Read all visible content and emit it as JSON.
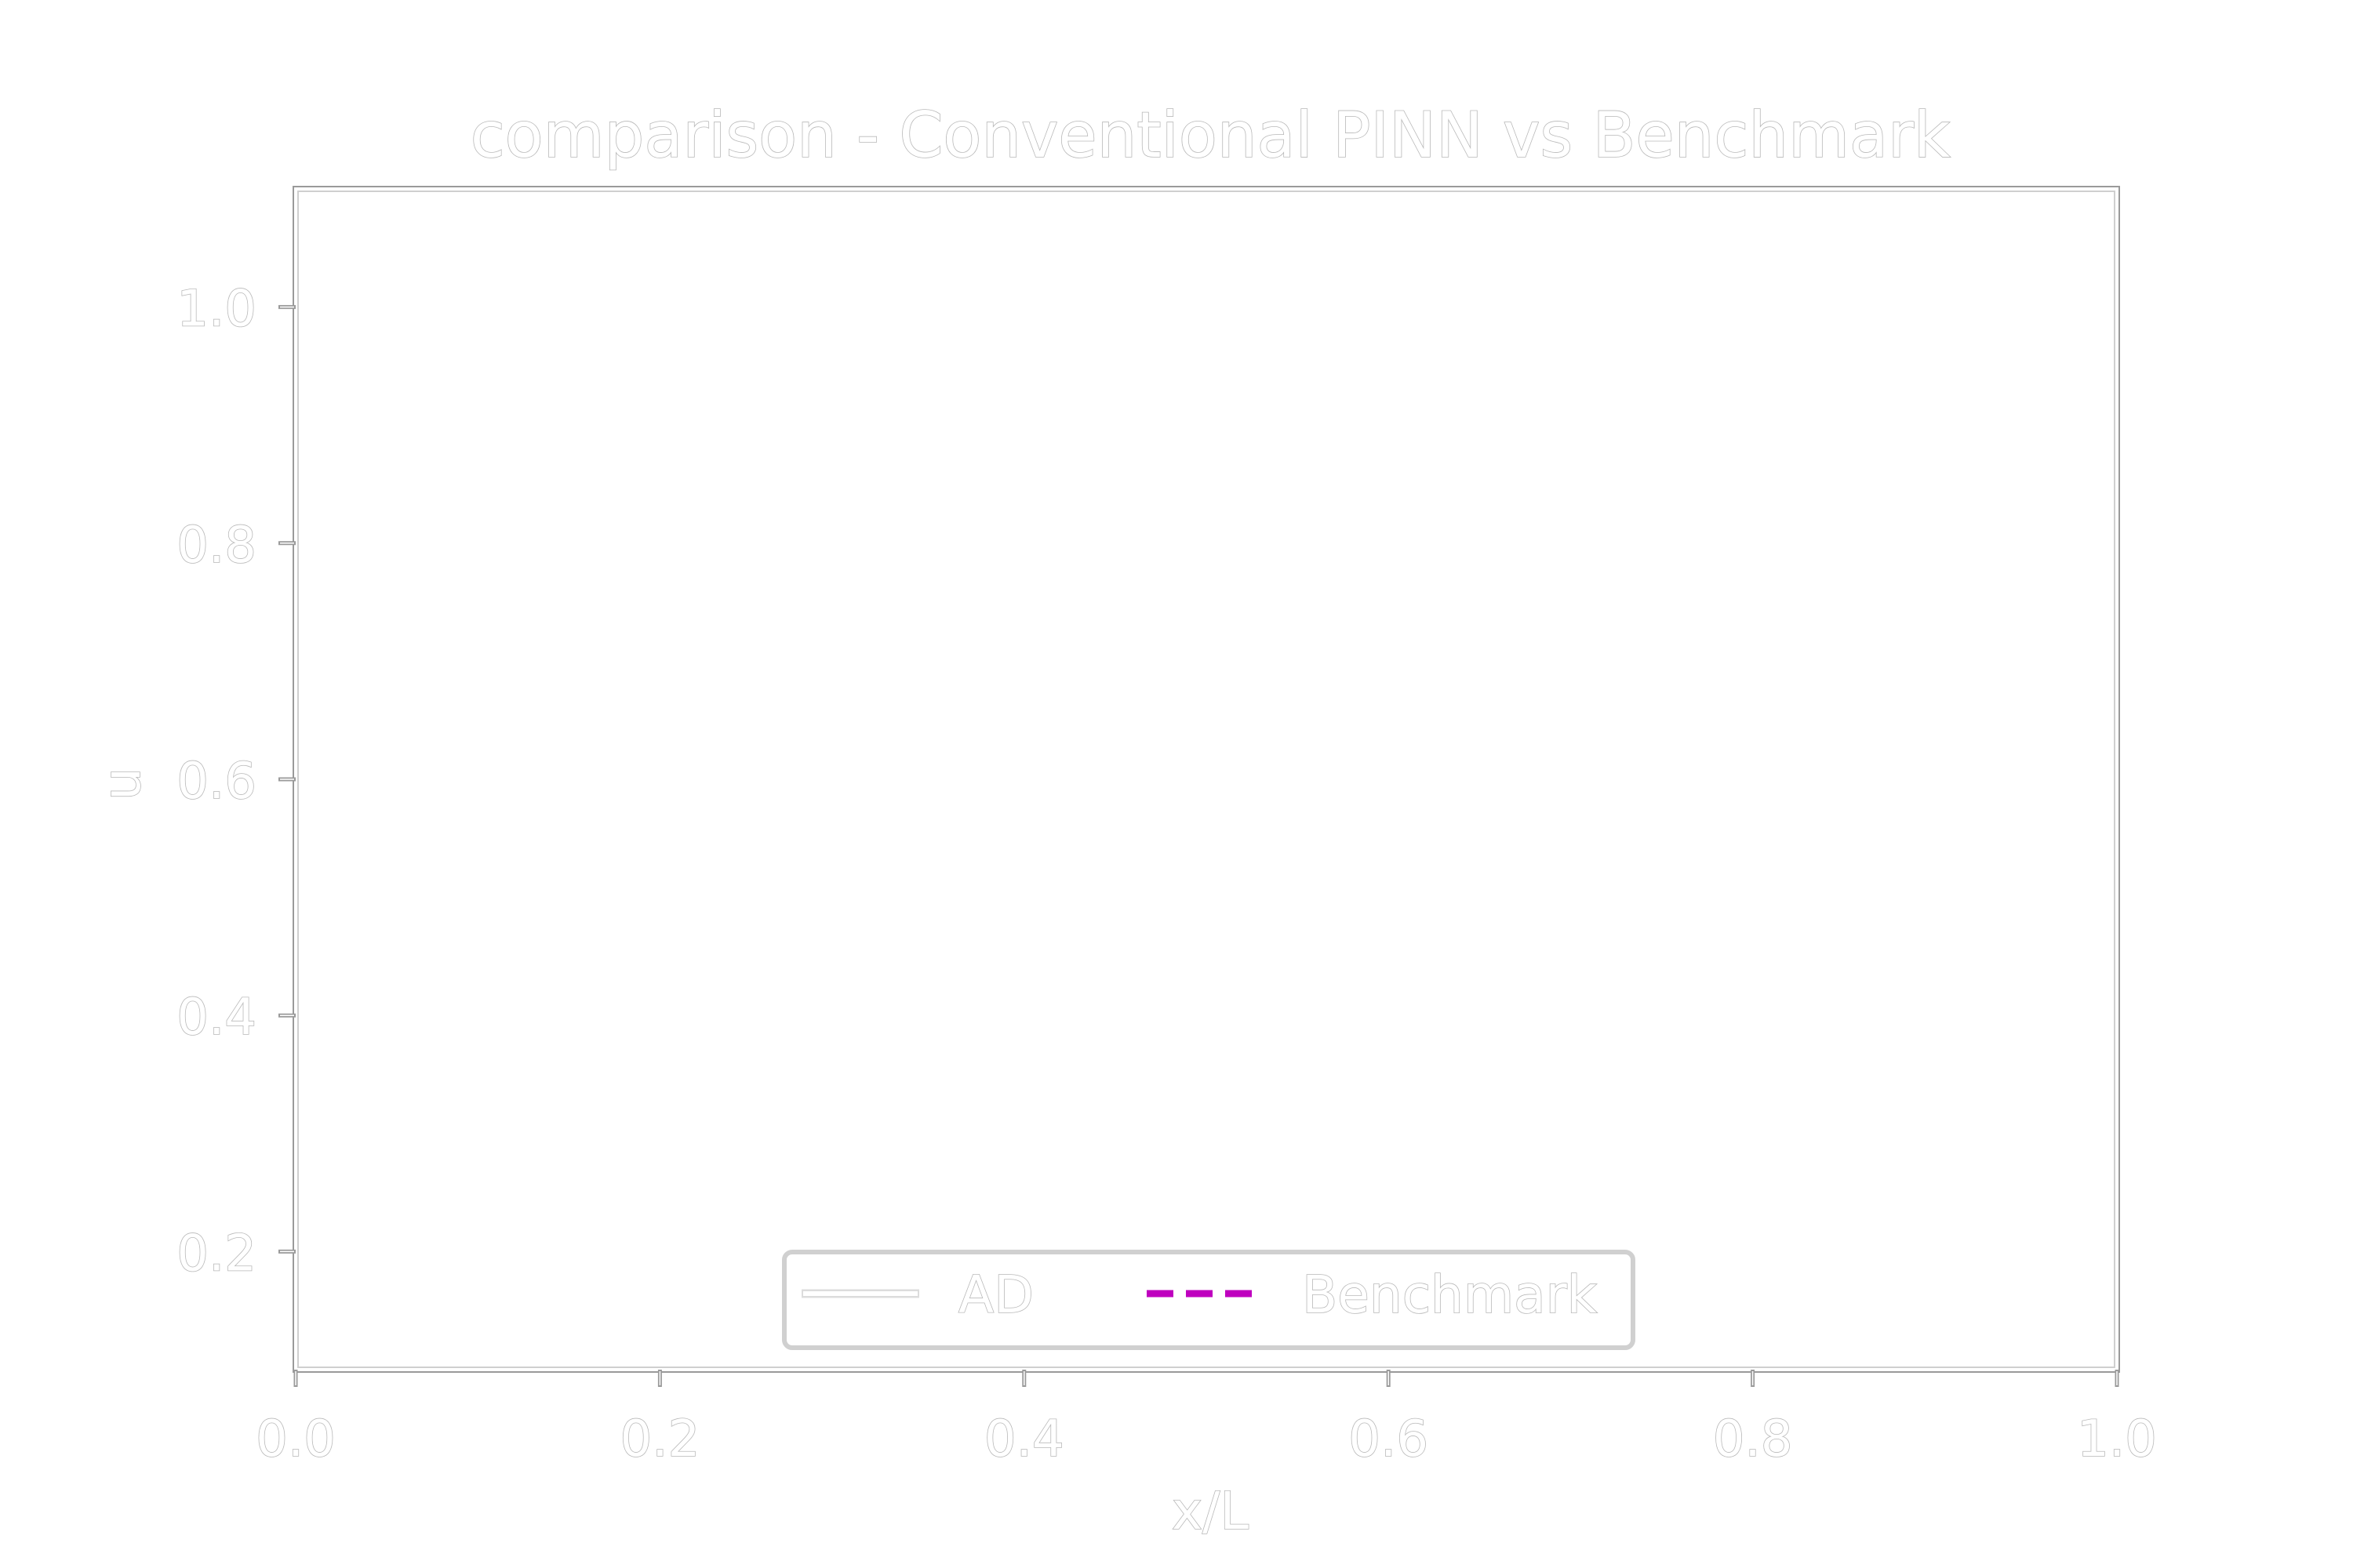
{
  "chart_data": {
    "type": "line",
    "title": "comparison - Conventional PINN vs Benchmark",
    "xlabel": "x/L",
    "ylabel": "u",
    "xlim": [
      0.0,
      1.0
    ],
    "ylim": [
      0.1,
      1.1
    ],
    "xticks": [
      "0.0",
      "0.2",
      "0.4",
      "0.6",
      "0.8",
      "1.0"
    ],
    "yticks": [
      "0.2",
      "0.4",
      "0.6",
      "0.8",
      "1.0"
    ],
    "grid": false,
    "legend_position": "bottom-center",
    "series": [
      {
        "name": "AD",
        "line_style": "solid",
        "color": "#ffffff",
        "x": [],
        "y": []
      },
      {
        "name": "Benchmark",
        "line_style": "dashed",
        "color": "#bf00bf",
        "x": [],
        "y": []
      }
    ]
  }
}
